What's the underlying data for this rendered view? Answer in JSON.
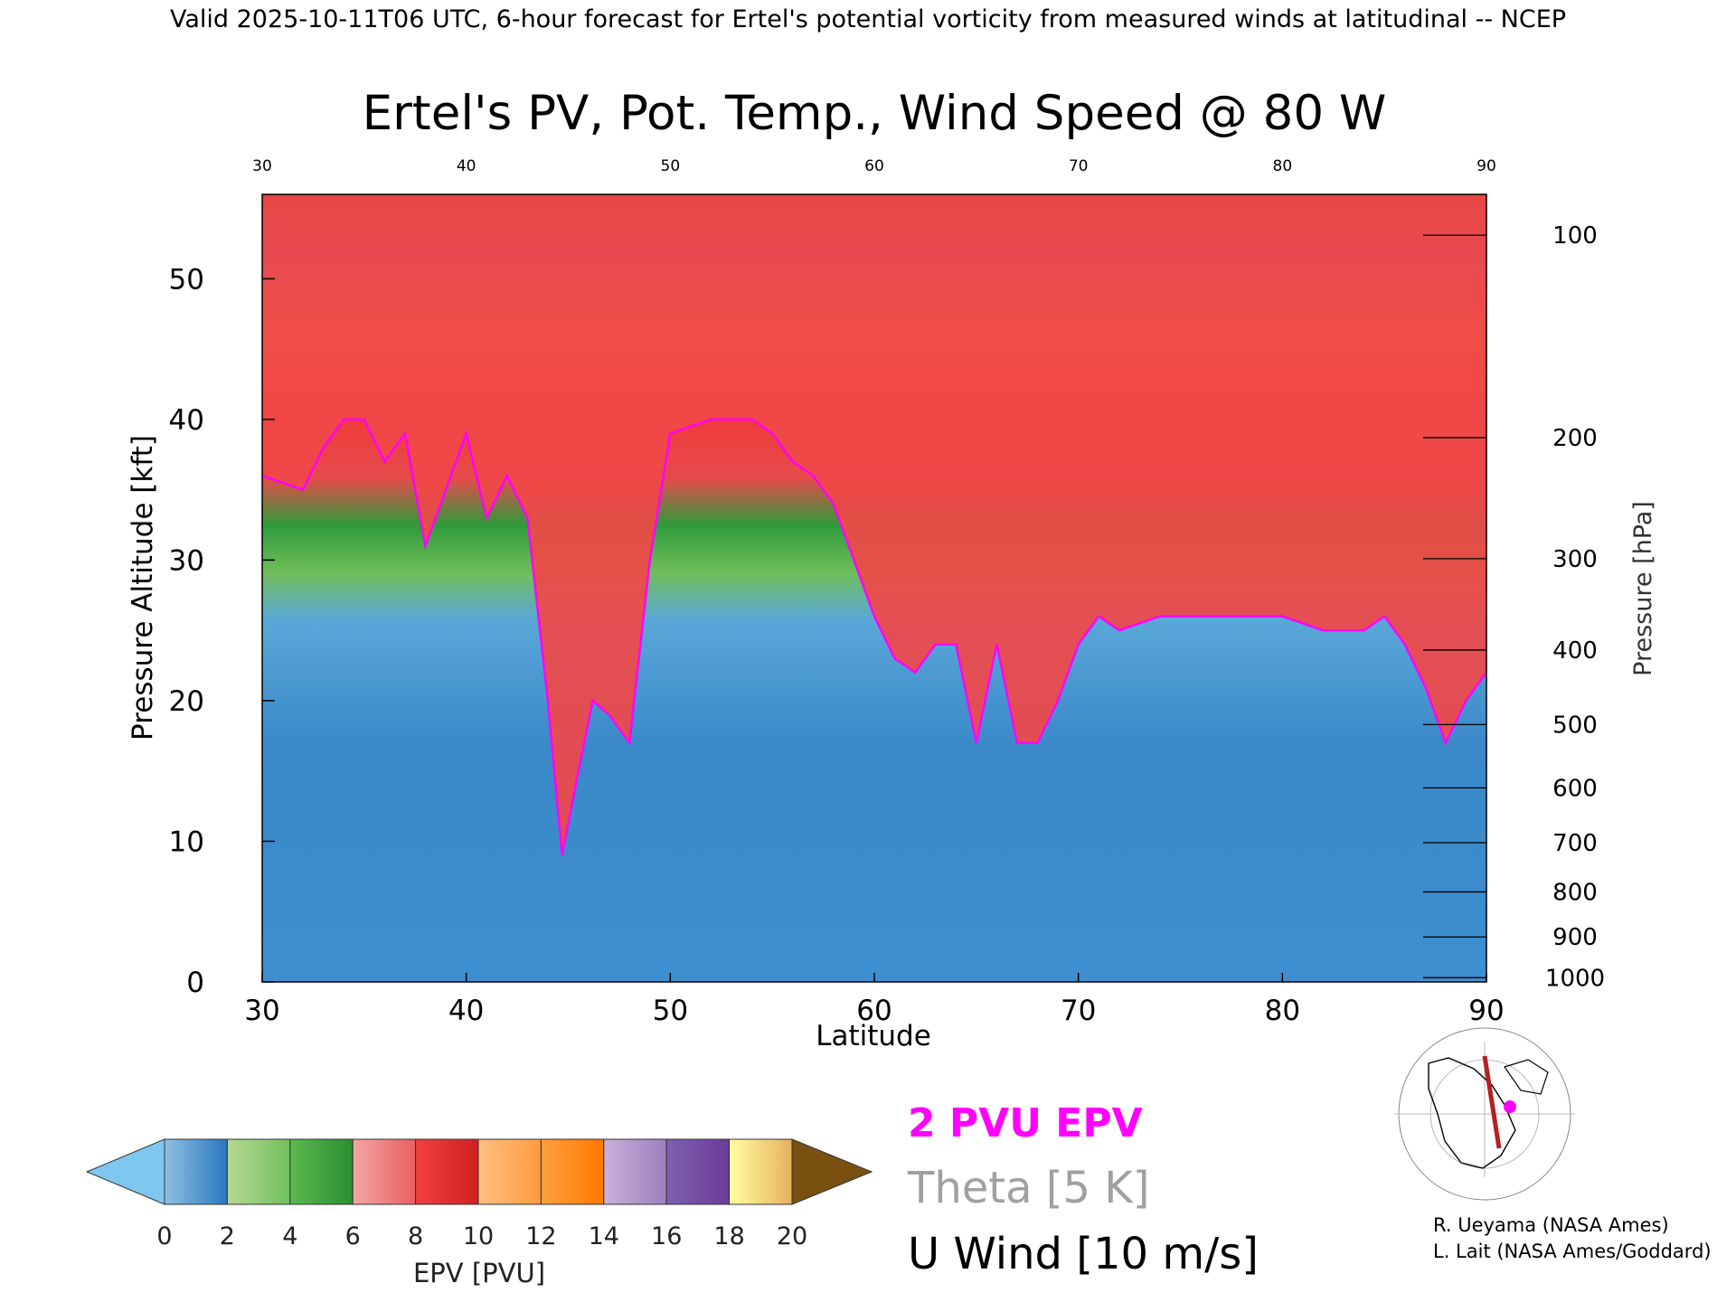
{
  "header": "Valid 2025-10-11T06 UTC, 6-hour forecast for Ertel's potential vorticity from measured winds at latitudinal -- NCEP",
  "chart_data": {
    "type": "heatmap",
    "title": "Ertel's PV, Pot. Temp., Wind Speed @ 80 W",
    "xlabel": "Latitude",
    "ylabel": "Pressure Altitude [kft]",
    "y2label": "Pressure [hPa]",
    "xlim": [
      30,
      90
    ],
    "ylim": [
      0,
      56
    ],
    "x_ticks": [
      "30",
      "40",
      "50",
      "60",
      "70",
      "80",
      "90"
    ],
    "top_ticks": [
      "30",
      "40",
      "50",
      "60",
      "70",
      "80",
      "90"
    ],
    "y_ticks": [
      "0",
      "10",
      "20",
      "30",
      "40",
      "50"
    ],
    "pressure_ticks": [
      {
        "label": "100",
        "alt": 53.1
      },
      {
        "label": "200",
        "alt": 38.7
      },
      {
        "label": "300",
        "alt": 30.1
      },
      {
        "label": "400",
        "alt": 23.6
      },
      {
        "label": "500",
        "alt": 18.3
      },
      {
        "label": "600",
        "alt": 13.8
      },
      {
        "label": "700",
        "alt": 9.9
      },
      {
        "label": "800",
        "alt": 6.4
      },
      {
        "label": "900",
        "alt": 3.2
      },
      {
        "label": "1000",
        "alt": 0.3
      }
    ],
    "colorbar": {
      "label": "EPV [PVU]",
      "ticks": [
        "0",
        "2",
        "4",
        "6",
        "8",
        "10",
        "12",
        "14",
        "16",
        "18",
        "20"
      ],
      "under_color": "#7ec8f0",
      "over_color": "#7a5010",
      "bins": [
        [
          "#8ec0e0",
          "#2a78c0"
        ],
        [
          "#b8d890",
          "#70c060"
        ],
        [
          "#5cb850",
          "#2a9030"
        ],
        [
          "#f4a6a6",
          "#e86060"
        ],
        [
          "#f04040",
          "#d02020"
        ],
        [
          "#ffc080",
          "#ff9a40"
        ],
        [
          "#ffa040",
          "#ff7800"
        ],
        [
          "#c8b0d8",
          "#9c80c0"
        ],
        [
          "#8060b0",
          "#6a3c98"
        ],
        [
          "#ffffa0",
          "#e8b060"
        ]
      ]
    },
    "tropopause_2pvu": [
      [
        30,
        36
      ],
      [
        32,
        35
      ],
      [
        33,
        38
      ],
      [
        34,
        40
      ],
      [
        35,
        40
      ],
      [
        36,
        37
      ],
      [
        37,
        39
      ],
      [
        38,
        31
      ],
      [
        39,
        35
      ],
      [
        40,
        39
      ],
      [
        41,
        33
      ],
      [
        42,
        36
      ],
      [
        43,
        33
      ],
      [
        44,
        20
      ],
      [
        44.7,
        9
      ],
      [
        45.5,
        15
      ],
      [
        46.2,
        20
      ],
      [
        47,
        19
      ],
      [
        48,
        17
      ],
      [
        49,
        30
      ],
      [
        50,
        39
      ],
      [
        52,
        40
      ],
      [
        54,
        40
      ],
      [
        55,
        39
      ],
      [
        56,
        37
      ],
      [
        57,
        36
      ],
      [
        58,
        34
      ],
      [
        59,
        30
      ],
      [
        60,
        26
      ],
      [
        61,
        23
      ],
      [
        62,
        22
      ],
      [
        63,
        24
      ],
      [
        64,
        24
      ],
      [
        65,
        17
      ],
      [
        66,
        24
      ],
      [
        67,
        17
      ],
      [
        68,
        17
      ],
      [
        69,
        20
      ],
      [
        70,
        24
      ],
      [
        71,
        26
      ],
      [
        72,
        25
      ],
      [
        74,
        26
      ],
      [
        76,
        26
      ],
      [
        78,
        26
      ],
      [
        80,
        26
      ],
      [
        82,
        25
      ],
      [
        84,
        25
      ],
      [
        85,
        26
      ],
      [
        86,
        24
      ],
      [
        87,
        21
      ],
      [
        88,
        17
      ],
      [
        89,
        20
      ],
      [
        90,
        22
      ]
    ],
    "legend": [
      {
        "label": "2 PVU EPV",
        "color": "#ff00ff"
      },
      {
        "label": "Theta [5 K]",
        "color": "#a0a0a0"
      },
      {
        "label": "U Wind [10 m/s]",
        "color": "#000000"
      }
    ]
  },
  "credits": [
    "R. Ueyama (NASA Ames)",
    "L. Lait (NASA Ames/Goddard)"
  ]
}
